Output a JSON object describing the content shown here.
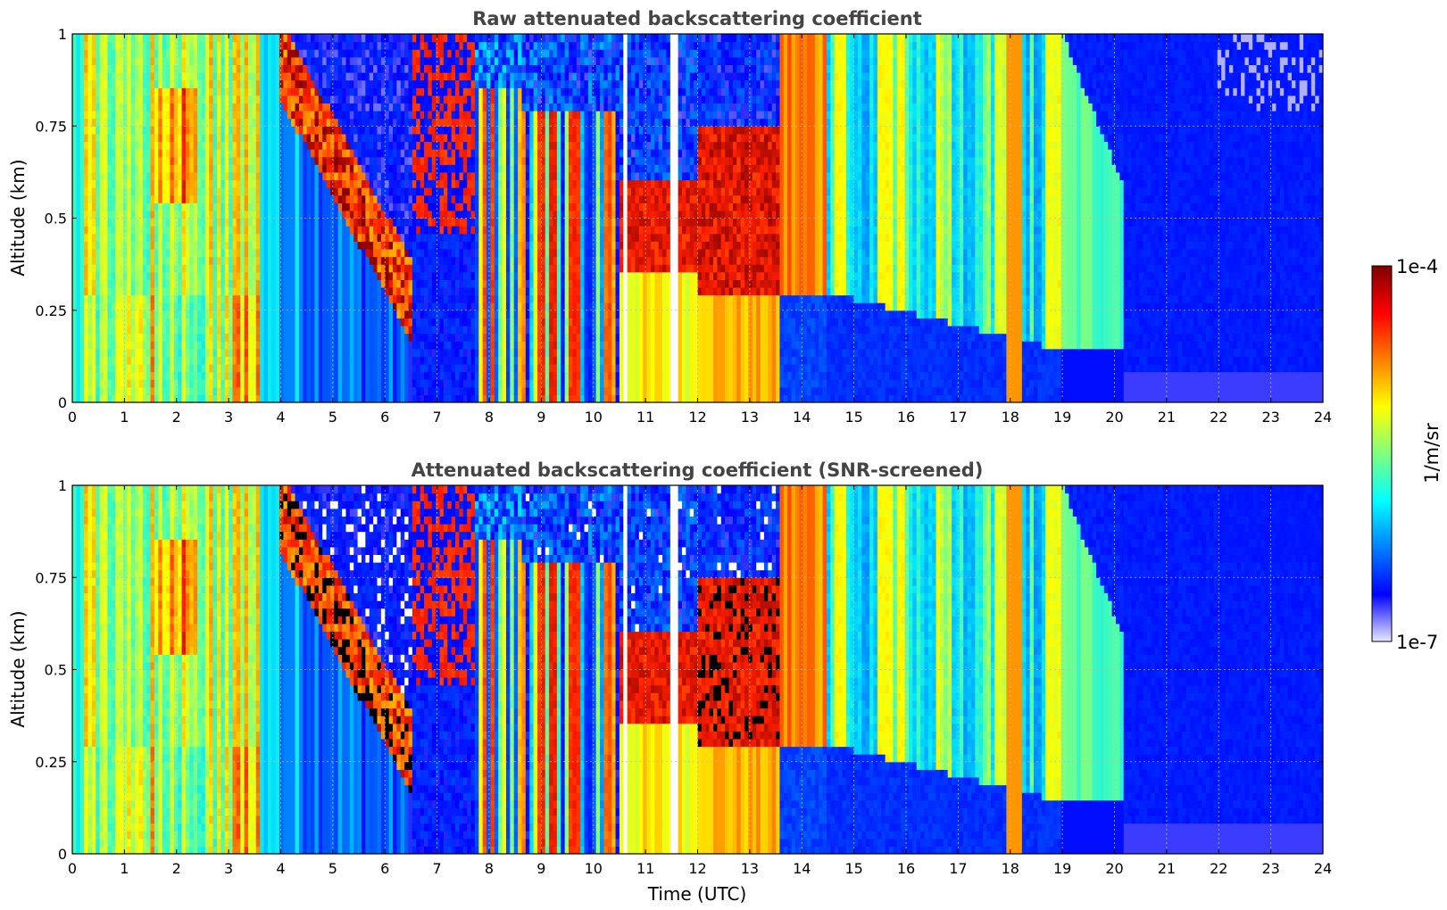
{
  "chart_data": [
    {
      "type": "heatmap",
      "title": "Raw attenuated backscattering coefficient",
      "xlabel": "",
      "ylabel": "Altitude (km)",
      "xlim": [
        0,
        24
      ],
      "ylim": [
        0,
        1
      ],
      "x_ticks": [
        "0",
        "1",
        "2",
        "3",
        "4",
        "5",
        "6",
        "7",
        "8",
        "9",
        "10",
        "11",
        "12",
        "13",
        "14",
        "15",
        "16",
        "17",
        "18",
        "19",
        "20",
        "21",
        "22",
        "23",
        "24"
      ],
      "y_ticks": [
        "0",
        "0.25",
        "0.5",
        "0.75",
        "1"
      ],
      "grid": true,
      "colormap": "jet",
      "scale": "log",
      "color_range": [
        1e-07,
        0.0001
      ],
      "screened": false
    },
    {
      "type": "heatmap",
      "title": "Attenuated backscattering coefficient (SNR-screened)",
      "xlabel": "Time (UTC)",
      "ylabel": "Altitude (km)",
      "xlim": [
        0,
        24
      ],
      "ylim": [
        0,
        1
      ],
      "x_ticks": [
        "0",
        "1",
        "2",
        "3",
        "4",
        "5",
        "6",
        "7",
        "8",
        "9",
        "10",
        "11",
        "12",
        "13",
        "14",
        "15",
        "16",
        "17",
        "18",
        "19",
        "20",
        "21",
        "22",
        "23",
        "24"
      ],
      "y_ticks": [
        "0",
        "0.25",
        "0.5",
        "0.75",
        "1"
      ],
      "grid": true,
      "colormap": "jet",
      "scale": "log",
      "color_range": [
        1e-07,
        0.0001
      ],
      "screened": true
    }
  ],
  "colorbar": {
    "label": "1/m/sr",
    "max_label": "1e-4",
    "min_label": "1e-7",
    "colors": [
      "#800000",
      "#ff0000",
      "#ff8000",
      "#ffff00",
      "#80ff80",
      "#00ffff",
      "#0080ff",
      "#0000ff",
      "#e8e8ff"
    ]
  }
}
